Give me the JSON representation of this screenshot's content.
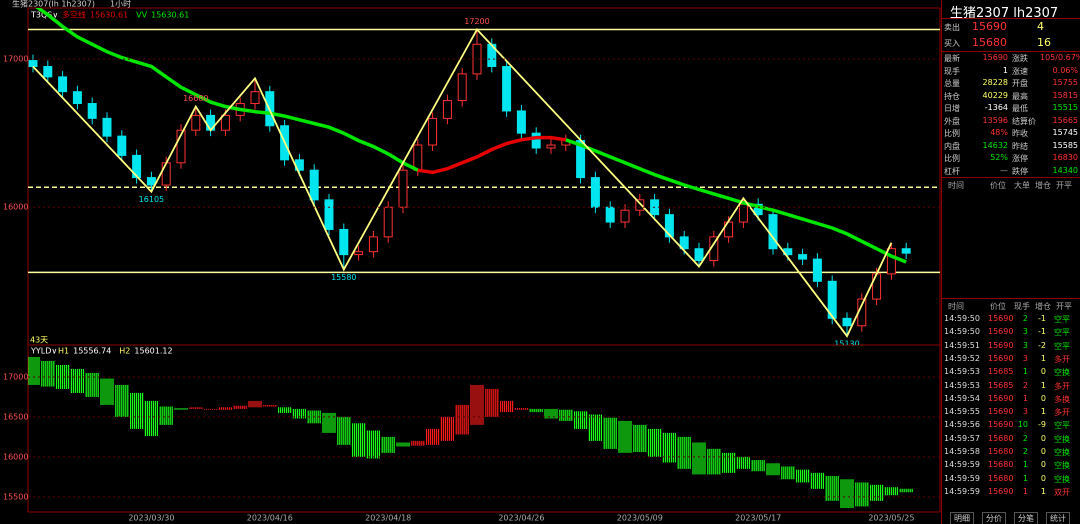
{
  "chart_data": [
    {
      "type": "candlestick",
      "title": "生猪2307(lh 1h2307)",
      "interval": "1小时",
      "indicator": "T3QS∨",
      "note": "43天",
      "up_color": "#ff3232",
      "down_color": "#00e5ee",
      "ylim": [
        15070,
        17345
      ],
      "yticks": [
        16000,
        17000
      ],
      "grid": true,
      "ohlc": [
        [
          16990,
          17030,
          16910,
          16950
        ],
        [
          16950,
          16990,
          16840,
          16880
        ],
        [
          16880,
          16920,
          16740,
          16780
        ],
        [
          16780,
          16820,
          16660,
          16700
        ],
        [
          16700,
          16740,
          16560,
          16600
        ],
        [
          16600,
          16640,
          16440,
          16480
        ],
        [
          16480,
          16520,
          16310,
          16350
        ],
        [
          16350,
          16390,
          16160,
          16200
        ],
        [
          16200,
          16240,
          16105,
          16150
        ],
        [
          16150,
          16340,
          16110,
          16300
        ],
        [
          16300,
          16560,
          16260,
          16520
        ],
        [
          16520,
          16680,
          16480,
          16620
        ],
        [
          16620,
          16660,
          16480,
          16520
        ],
        [
          16520,
          16660,
          16480,
          16620
        ],
        [
          16620,
          16740,
          16580,
          16700
        ],
        [
          16700,
          16870,
          16660,
          16780
        ],
        [
          16780,
          16820,
          16510,
          16550
        ],
        [
          16550,
          16590,
          16280,
          16320
        ],
        [
          16320,
          16360,
          16210,
          16250
        ],
        [
          16250,
          16290,
          16010,
          16050
        ],
        [
          16050,
          16090,
          15810,
          15850
        ],
        [
          15850,
          15890,
          15580,
          15680
        ],
        [
          15680,
          15740,
          15640,
          15700
        ],
        [
          15700,
          15840,
          15660,
          15800
        ],
        [
          15800,
          16040,
          15760,
          16000
        ],
        [
          16000,
          16290,
          15960,
          16250
        ],
        [
          16250,
          16460,
          16210,
          16420
        ],
        [
          16420,
          16640,
          16380,
          16600
        ],
        [
          16600,
          16760,
          16560,
          16720
        ],
        [
          16720,
          16940,
          16680,
          16900
        ],
        [
          16900,
          17200,
          16860,
          17100
        ],
        [
          17100,
          17140,
          16910,
          16950
        ],
        [
          16950,
          16990,
          16610,
          16650
        ],
        [
          16650,
          16690,
          16460,
          16500
        ],
        [
          16500,
          16540,
          16360,
          16400
        ],
        [
          16400,
          16460,
          16360,
          16420
        ],
        [
          16420,
          16490,
          16380,
          16450
        ],
        [
          16450,
          16490,
          16160,
          16200
        ],
        [
          16200,
          16240,
          15960,
          16000
        ],
        [
          16000,
          16040,
          15860,
          15900
        ],
        [
          15900,
          16020,
          15860,
          15980
        ],
        [
          15980,
          16090,
          15940,
          16050
        ],
        [
          16050,
          16090,
          15910,
          15950
        ],
        [
          15950,
          15990,
          15760,
          15800
        ],
        [
          15800,
          15840,
          15680,
          15720
        ],
        [
          15720,
          15760,
          15600,
          15640
        ],
        [
          15640,
          15840,
          15600,
          15800
        ],
        [
          15800,
          15940,
          15760,
          15900
        ],
        [
          15900,
          16060,
          15860,
          16020
        ],
        [
          16020,
          16060,
          15910,
          15950
        ],
        [
          15950,
          15990,
          15680,
          15720
        ],
        [
          15720,
          15760,
          15640,
          15680
        ],
        [
          15680,
          15720,
          15610,
          15650
        ],
        [
          15650,
          15690,
          15460,
          15500
        ],
        [
          15500,
          15540,
          15210,
          15250
        ],
        [
          15250,
          15290,
          15130,
          15200
        ],
        [
          15200,
          15420,
          15160,
          15380
        ],
        [
          15380,
          15590,
          15340,
          15550
        ],
        [
          15550,
          15760,
          15510,
          15720
        ],
        [
          15720,
          15760,
          15650,
          15690
        ]
      ],
      "series": [
        {
          "name": "VV",
          "color": "#00e600",
          "values": [
            17370,
            17300,
            17220,
            17150,
            17100,
            17050,
            17010,
            16980,
            16950,
            16880,
            16810,
            16760,
            16710,
            16680,
            16660,
            16645,
            16635,
            16615,
            16590,
            16565,
            16540,
            16500,
            16450,
            16410,
            16360,
            16300,
            16250,
            null,
            null,
            null,
            null,
            null,
            null,
            null,
            null,
            null,
            16455,
            16420,
            16380,
            16340,
            16300,
            16260,
            16220,
            16185,
            16150,
            16120,
            16090,
            16060,
            16030,
            16005,
            15980,
            15950,
            15920,
            15890,
            15860,
            15820,
            15770,
            15720,
            15670,
            15630.61
          ]
        },
        {
          "name": "多空线",
          "color": "#e60000",
          "values": [
            null,
            null,
            null,
            null,
            null,
            null,
            null,
            null,
            null,
            null,
            null,
            null,
            null,
            null,
            null,
            null,
            null,
            null,
            null,
            null,
            null,
            null,
            null,
            null,
            null,
            null,
            16250,
            16235,
            16260,
            16300,
            16340,
            16390,
            16430,
            16455,
            16470,
            16470,
            16455,
            null,
            null,
            null,
            null,
            null,
            null,
            null,
            null,
            null,
            null,
            null,
            null,
            null,
            null,
            null,
            null,
            null,
            null,
            null,
            null,
            null,
            null,
            null
          ]
        }
      ],
      "zigzag": {
        "color": "#ffff80",
        "x": [
          0,
          8,
          11,
          12,
          15,
          21,
          30,
          45,
          48,
          55,
          58
        ],
        "values": [
          16950,
          16105,
          16680,
          16520,
          16870,
          15580,
          17200,
          15600,
          16060,
          15130,
          15760
        ],
        "value_labels": [
          null,
          "16105",
          "16680",
          null,
          null,
          "15580",
          "17200",
          null,
          null,
          "15130",
          null
        ]
      },
      "hlines": [
        {
          "value": 17200,
          "style": "solid"
        },
        {
          "value": 16135,
          "style": "dashed"
        },
        {
          "value": 15560,
          "style": "solid"
        }
      ]
    },
    {
      "type": "band-histogram",
      "title": "YYLD∨",
      "up_color": "#ff1a1a",
      "down_color": "#19ff19",
      "ylim": [
        15310,
        17400
      ],
      "yticks": [
        15500,
        16000,
        16500,
        17000
      ],
      "grid": true,
      "categories": [
        null,
        null,
        null,
        null,
        null,
        null,
        null,
        null,
        "2023/03/30",
        null,
        null,
        null,
        null,
        null,
        null,
        null,
        "2023/04/16",
        null,
        null,
        null,
        null,
        null,
        null,
        null,
        "2023/04/18",
        null,
        null,
        null,
        null,
        null,
        null,
        null,
        null,
        "2023/04/26",
        null,
        null,
        null,
        null,
        null,
        null,
        null,
        "2023/05/09",
        null,
        null,
        null,
        null,
        null,
        null,
        null,
        "2023/05/17",
        null,
        null,
        null,
        null,
        null,
        null,
        null,
        null,
        "2023/05/25",
        null
      ],
      "series": [
        {
          "name": "H1",
          "values": [
            16900,
            16880,
            16850,
            16800,
            16750,
            16650,
            16500,
            16350,
            16260,
            16400,
            16590,
            16620,
            16600,
            16620,
            16640,
            16700,
            16650,
            16550,
            16480,
            16420,
            16300,
            16150,
            16000,
            15980,
            16050,
            16130,
            16200,
            16350,
            16500,
            16650,
            16900,
            16850,
            16700,
            16610,
            16560,
            16480,
            16450,
            16350,
            16200,
            16100,
            16050,
            16060,
            16000,
            15930,
            15850,
            15780,
            15780,
            15800,
            15850,
            15820,
            15770,
            15720,
            15680,
            15600,
            15450,
            15360,
            15380,
            15450,
            15520,
            15556.74
          ]
        },
        {
          "name": "H2",
          "values": [
            17250,
            17200,
            17150,
            17100,
            17050,
            16980,
            16900,
            16800,
            16700,
            16630,
            16610,
            16600,
            16590,
            16590,
            16600,
            16620,
            16630,
            16620,
            16600,
            16580,
            16550,
            16500,
            16420,
            16330,
            16250,
            16180,
            16140,
            16150,
            16200,
            16280,
            16400,
            16500,
            16560,
            16590,
            16600,
            16600,
            16590,
            16570,
            16530,
            16490,
            16450,
            16400,
            16350,
            16300,
            16250,
            16180,
            16100,
            16050,
            16000,
            15960,
            15920,
            15880,
            15840,
            15800,
            15760,
            15720,
            15680,
            15650,
            15620,
            15601.12
          ]
        }
      ]
    }
  ],
  "quote": {
    "title": "生猪2307  lh2307",
    "bidask": [
      [
        "卖出",
        "15690",
        "4"
      ],
      [
        "买入",
        "15680",
        "16"
      ]
    ],
    "stats": [
      [
        "最新",
        "15690",
        "涨跌",
        "105/0.67%"
      ],
      [
        "现手",
        "1",
        "涨速",
        "0.06%"
      ],
      [
        "总量",
        "28228",
        "开盘",
        "15755"
      ],
      [
        "持仓",
        "40229",
        "最高",
        "15815"
      ],
      [
        "日增",
        "-1364",
        "最低",
        "15515"
      ],
      [
        "外盘",
        "13596",
        "结算价",
        "15665"
      ],
      [
        "比例",
        "48%",
        "昨收",
        "15745"
      ],
      [
        "内盘",
        "14632",
        "昨结",
        "15585"
      ],
      [
        "比例",
        "52%",
        "涨停",
        "16830"
      ],
      [
        "杠杆",
        "—",
        "跌停",
        "14340"
      ]
    ],
    "stat_colors": [
      [
        "#ff3232",
        "#ff3232"
      ],
      [
        "#ffffff",
        "#ff3232"
      ],
      [
        "#ffff66",
        "#ff3232"
      ],
      [
        "#ffff66",
        "#ff3232"
      ],
      [
        "#ffffff",
        "#00e600"
      ],
      [
        "#ff3232",
        "#ff3232"
      ],
      [
        "#ff3232",
        "#ffffff"
      ],
      [
        "#00e600",
        "#ffffff"
      ],
      [
        "#00e600",
        "#ff3232"
      ],
      [
        "#aaaaaa",
        "#00e600"
      ]
    ],
    "big_header": [
      "时间",
      "价位",
      "大单",
      "增仓",
      "开平"
    ],
    "tick_header": [
      "时间",
      "价位",
      "现手",
      "增仓",
      "开平"
    ],
    "ticks": [
      [
        "14:59:50",
        "15690",
        "2",
        "-1",
        "空平"
      ],
      [
        "14:59:50",
        "15690",
        "3",
        "-1",
        "空平"
      ],
      [
        "14:59:51",
        "15690",
        "3",
        "-2",
        "空平"
      ],
      [
        "14:59:52",
        "15690",
        "3",
        "1",
        "多开"
      ],
      [
        "14:59:53",
        "15685",
        "1",
        "0",
        "空换"
      ],
      [
        "14:59:53",
        "15685",
        "2",
        "1",
        "多开"
      ],
      [
        "14:59:54",
        "15690",
        "1",
        "0",
        "多换"
      ],
      [
        "14:59:55",
        "15690",
        "3",
        "1",
        "多开"
      ],
      [
        "14:59:56",
        "15690",
        "10",
        "-9",
        "空平"
      ],
      [
        "14:59:57",
        "15680",
        "2",
        "0",
        "空换"
      ],
      [
        "14:59:58",
        "15680",
        "2",
        "0",
        "空换"
      ],
      [
        "14:59:59",
        "15680",
        "1",
        "0",
        "空换"
      ],
      [
        "14:59:59",
        "15680",
        "1",
        "0",
        "空换"
      ],
      [
        "14:59:59",
        "15690",
        "1",
        "1",
        "双开"
      ]
    ],
    "tabs": [
      "明细",
      "分价",
      "分笔",
      "统计"
    ]
  }
}
